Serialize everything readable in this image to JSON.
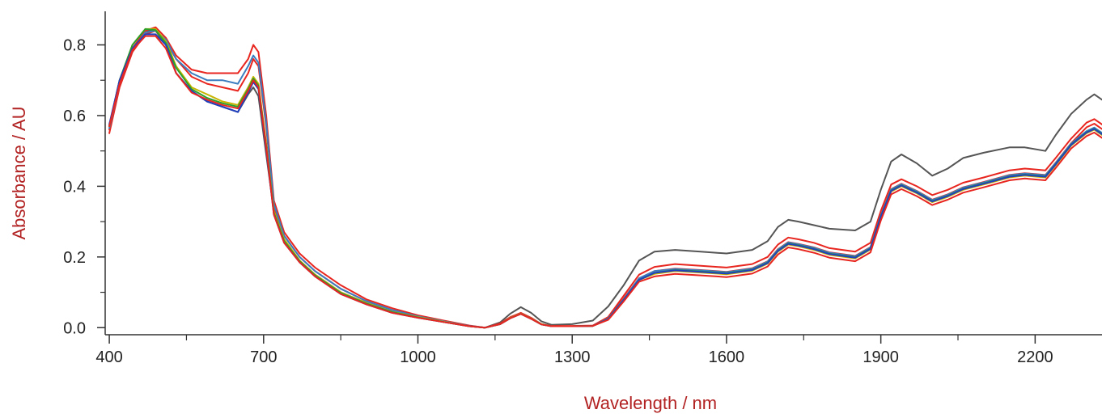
{
  "chart_data": {
    "type": "line",
    "xlabel": "Wavelength / nm",
    "ylabel": "Absorbance / AU",
    "label_color": "#b22222",
    "xlim": [
      392,
      2330
    ],
    "ylim": [
      -0.02,
      0.895
    ],
    "x_ticks": [
      400,
      700,
      1000,
      1300,
      1600,
      1900,
      2200
    ],
    "x_tick_labels": [
      "400",
      "700",
      "1000",
      "1300",
      "1600",
      "1900",
      "2200"
    ],
    "x_minor_ticks": [
      550,
      850,
      1150,
      1450,
      1750,
      2050
    ],
    "y_ticks": [
      0.0,
      0.2,
      0.4,
      0.6,
      0.8
    ],
    "y_tick_labels": [
      "0.0",
      "0.2",
      "0.4",
      "0.6",
      "0.8"
    ],
    "y_minor_ticks": [
      0.1,
      0.3,
      0.5,
      0.7
    ],
    "grid": false,
    "legend": "none",
    "x": [
      400,
      420,
      445,
      470,
      490,
      510,
      530,
      560,
      590,
      620,
      650,
      670,
      680,
      690,
      705,
      720,
      740,
      770,
      800,
      850,
      900,
      950,
      1000,
      1050,
      1100,
      1130,
      1160,
      1180,
      1200,
      1220,
      1240,
      1260,
      1300,
      1340,
      1370,
      1400,
      1430,
      1460,
      1500,
      1550,
      1600,
      1650,
      1680,
      1700,
      1720,
      1740,
      1770,
      1800,
      1850,
      1880,
      1900,
      1920,
      1940,
      1970,
      2000,
      2030,
      2060,
      2100,
      2150,
      2180,
      2220,
      2240,
      2270,
      2300,
      2315,
      2330
    ],
    "series": [
      {
        "color": "#555555",
        "values": [
          0.57,
          0.7,
          0.79,
          0.84,
          0.84,
          0.8,
          0.72,
          0.67,
          0.64,
          0.625,
          0.61,
          0.66,
          0.68,
          0.655,
          0.49,
          0.33,
          0.25,
          0.19,
          0.15,
          0.1,
          0.07,
          0.045,
          0.03,
          0.018,
          0.005,
          0.0,
          0.015,
          0.04,
          0.058,
          0.042,
          0.018,
          0.008,
          0.01,
          0.02,
          0.06,
          0.12,
          0.19,
          0.215,
          0.22,
          0.215,
          0.21,
          0.22,
          0.245,
          0.285,
          0.305,
          0.3,
          0.29,
          0.28,
          0.275,
          0.3,
          0.39,
          0.47,
          0.49,
          0.465,
          0.43,
          0.45,
          0.48,
          0.495,
          0.51,
          0.51,
          0.5,
          0.545,
          0.605,
          0.645,
          0.66,
          0.645
        ]
      },
      {
        "color": "#e8261f",
        "values": [
          0.56,
          0.69,
          0.79,
          0.84,
          0.85,
          0.82,
          0.77,
          0.73,
          0.72,
          0.72,
          0.72,
          0.76,
          0.8,
          0.78,
          0.6,
          0.36,
          0.27,
          0.21,
          0.17,
          0.12,
          0.08,
          0.055,
          0.035,
          0.02,
          0.006,
          0.0,
          0.012,
          0.03,
          0.042,
          0.028,
          0.01,
          0.005,
          0.005,
          0.006,
          0.03,
          0.09,
          0.15,
          0.172,
          0.18,
          0.175,
          0.17,
          0.18,
          0.2,
          0.235,
          0.255,
          0.25,
          0.24,
          0.225,
          0.215,
          0.24,
          0.33,
          0.405,
          0.42,
          0.4,
          0.375,
          0.39,
          0.41,
          0.425,
          0.445,
          0.45,
          0.445,
          0.48,
          0.535,
          0.58,
          0.59,
          0.575
        ]
      },
      {
        "color": "#e8261f",
        "values": [
          0.55,
          0.68,
          0.78,
          0.83,
          0.84,
          0.81,
          0.76,
          0.71,
          0.69,
          0.68,
          0.67,
          0.72,
          0.76,
          0.74,
          0.57,
          0.34,
          0.26,
          0.2,
          0.16,
          0.11,
          0.075,
          0.05,
          0.032,
          0.018,
          0.005,
          0.0,
          0.01,
          0.028,
          0.04,
          0.026,
          0.01,
          0.004,
          0.004,
          0.005,
          0.026,
          0.082,
          0.14,
          0.16,
          0.167,
          0.163,
          0.158,
          0.168,
          0.188,
          0.222,
          0.242,
          0.237,
          0.227,
          0.213,
          0.203,
          0.228,
          0.318,
          0.392,
          0.407,
          0.387,
          0.362,
          0.377,
          0.397,
          0.412,
          0.432,
          0.437,
          0.432,
          0.467,
          0.522,
          0.567,
          0.577,
          0.562
        ]
      },
      {
        "color": "#3b7dbf",
        "values": [
          0.565,
          0.69,
          0.785,
          0.835,
          0.84,
          0.815,
          0.76,
          0.72,
          0.7,
          0.7,
          0.69,
          0.74,
          0.77,
          0.75,
          0.58,
          0.35,
          0.26,
          0.2,
          0.16,
          0.11,
          0.075,
          0.05,
          0.032,
          0.018,
          0.005,
          0.0,
          0.01,
          0.028,
          0.04,
          0.026,
          0.01,
          0.004,
          0.004,
          0.005,
          0.026,
          0.08,
          0.14,
          0.16,
          0.166,
          0.162,
          0.157,
          0.167,
          0.187,
          0.221,
          0.241,
          0.236,
          0.226,
          0.212,
          0.202,
          0.227,
          0.317,
          0.391,
          0.406,
          0.386,
          0.361,
          0.376,
          0.396,
          0.411,
          0.431,
          0.436,
          0.431,
          0.466,
          0.521,
          0.556,
          0.566,
          0.551
        ]
      },
      {
        "color": "#c8b400",
        "values": [
          0.57,
          0.7,
          0.8,
          0.845,
          0.845,
          0.81,
          0.74,
          0.68,
          0.66,
          0.64,
          0.63,
          0.68,
          0.71,
          0.69,
          0.52,
          0.33,
          0.25,
          0.19,
          0.15,
          0.1,
          0.07,
          0.045,
          0.03,
          0.017,
          0.004,
          0.0,
          0.01,
          0.028,
          0.04,
          0.026,
          0.01,
          0.004,
          0.004,
          0.005,
          0.024,
          0.078,
          0.135,
          0.152,
          0.16,
          0.156,
          0.151,
          0.161,
          0.181,
          0.215,
          0.235,
          0.23,
          0.22,
          0.206,
          0.196,
          0.221,
          0.311,
          0.385,
          0.4,
          0.38,
          0.355,
          0.37,
          0.39,
          0.405,
          0.425,
          0.43,
          0.425,
          0.46,
          0.515,
          0.55,
          0.56,
          0.545
        ]
      },
      {
        "color": "#2ca02c",
        "values": [
          0.57,
          0.7,
          0.8,
          0.845,
          0.842,
          0.805,
          0.735,
          0.675,
          0.65,
          0.635,
          0.625,
          0.675,
          0.705,
          0.685,
          0.515,
          0.325,
          0.245,
          0.188,
          0.148,
          0.098,
          0.068,
          0.044,
          0.029,
          0.016,
          0.004,
          0.0,
          0.01,
          0.027,
          0.039,
          0.025,
          0.009,
          0.004,
          0.004,
          0.005,
          0.024,
          0.078,
          0.135,
          0.155,
          0.163,
          0.159,
          0.154,
          0.164,
          0.184,
          0.218,
          0.238,
          0.233,
          0.223,
          0.209,
          0.199,
          0.224,
          0.314,
          0.388,
          0.403,
          0.383,
          0.358,
          0.373,
          0.393,
          0.408,
          0.428,
          0.433,
          0.428,
          0.463,
          0.518,
          0.553,
          0.563,
          0.548
        ]
      },
      {
        "color": "#1f3fbf",
        "values": [
          0.575,
          0.7,
          0.79,
          0.83,
          0.83,
          0.8,
          0.72,
          0.67,
          0.64,
          0.625,
          0.61,
          0.665,
          0.695,
          0.675,
          0.505,
          0.32,
          0.24,
          0.185,
          0.145,
          0.095,
          0.066,
          0.042,
          0.028,
          0.016,
          0.004,
          0.0,
          0.01,
          0.027,
          0.039,
          0.025,
          0.009,
          0.004,
          0.004,
          0.005,
          0.024,
          0.078,
          0.135,
          0.155,
          0.162,
          0.158,
          0.153,
          0.163,
          0.183,
          0.217,
          0.237,
          0.232,
          0.222,
          0.208,
          0.198,
          0.223,
          0.313,
          0.387,
          0.402,
          0.382,
          0.357,
          0.372,
          0.392,
          0.407,
          0.427,
          0.432,
          0.427,
          0.462,
          0.517,
          0.552,
          0.562,
          0.547
        ]
      },
      {
        "color": "#e8261f",
        "values": [
          0.57,
          0.69,
          0.785,
          0.825,
          0.825,
          0.79,
          0.72,
          0.665,
          0.645,
          0.63,
          0.62,
          0.67,
          0.7,
          0.68,
          0.51,
          0.32,
          0.24,
          0.185,
          0.145,
          0.095,
          0.066,
          0.042,
          0.028,
          0.016,
          0.004,
          0.0,
          0.01,
          0.027,
          0.039,
          0.025,
          0.009,
          0.004,
          0.004,
          0.005,
          0.022,
          0.074,
          0.13,
          0.145,
          0.152,
          0.148,
          0.143,
          0.153,
          0.173,
          0.207,
          0.227,
          0.222,
          0.212,
          0.198,
          0.188,
          0.213,
          0.303,
          0.377,
          0.392,
          0.372,
          0.347,
          0.362,
          0.382,
          0.397,
          0.417,
          0.422,
          0.417,
          0.452,
          0.507,
          0.542,
          0.552,
          0.537
        ]
      }
    ]
  }
}
